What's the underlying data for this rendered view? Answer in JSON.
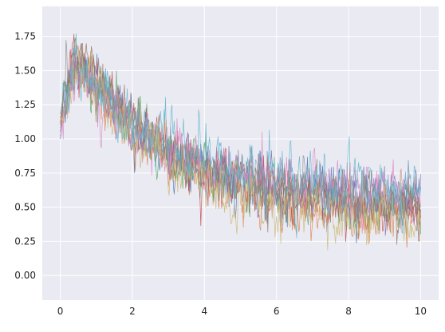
{
  "chart_data": {
    "type": "line",
    "title": "",
    "xlabel": "",
    "ylabel": "",
    "xlim": [
      -0.5,
      10.5
    ],
    "ylim": [
      -0.18,
      1.97
    ],
    "x_ticks": [
      0,
      2,
      4,
      6,
      8,
      10
    ],
    "x_tick_labels": [
      "0",
      "2",
      "4",
      "6",
      "8",
      "10"
    ],
    "y_ticks": [
      0.0,
      0.25,
      0.5,
      0.75,
      1.0,
      1.25,
      1.5,
      1.75
    ],
    "y_tick_labels": [
      "0.00",
      "0.25",
      "0.50",
      "0.75",
      "1.00",
      "1.25",
      "1.50",
      "1.75"
    ],
    "grid": true,
    "legend": "none",
    "background": "#eaeaf2",
    "grid_color": "#ffffff",
    "x_start": 0,
    "x_end": 10,
    "points_per_series": 501,
    "series": [
      {
        "color": "#4c72b0",
        "y_start": 1.0,
        "y_peak": 1.55,
        "y_end": 0.5,
        "noise": 0.16
      },
      {
        "color": "#dd8452",
        "y_start": 1.05,
        "y_peak": 1.52,
        "y_end": 0.42,
        "noise": 0.17
      },
      {
        "color": "#55a868",
        "y_start": 1.08,
        "y_peak": 1.58,
        "y_end": 0.45,
        "noise": 0.16
      },
      {
        "color": "#c44e52",
        "y_start": 1.1,
        "y_peak": 1.6,
        "y_end": 0.48,
        "noise": 0.18
      },
      {
        "color": "#8172b3",
        "y_start": 1.02,
        "y_peak": 1.55,
        "y_end": 0.55,
        "noise": 0.16
      },
      {
        "color": "#937860",
        "y_start": 1.12,
        "y_peak": 1.62,
        "y_end": 0.5,
        "noise": 0.15
      },
      {
        "color": "#da8bc3",
        "y_start": 1.05,
        "y_peak": 1.5,
        "y_end": 0.58,
        "noise": 0.17
      },
      {
        "color": "#8c8c8c",
        "y_start": 1.15,
        "y_peak": 1.6,
        "y_end": 0.5,
        "noise": 0.16
      },
      {
        "color": "#ccb974",
        "y_start": 1.1,
        "y_peak": 1.58,
        "y_end": 0.35,
        "noise": 0.17
      },
      {
        "color": "#64b5cd",
        "y_start": 1.18,
        "y_peak": 1.55,
        "y_end": 0.6,
        "noise": 0.18
      }
    ]
  }
}
